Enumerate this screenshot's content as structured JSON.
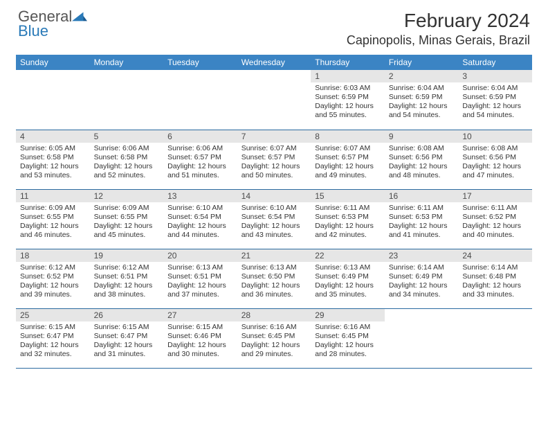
{
  "logo": {
    "general": "General",
    "blue": "Blue"
  },
  "title": "February 2024",
  "location": "Capinopolis, Minas Gerais, Brazil",
  "colors": {
    "header_bg": "#3b84c4",
    "header_text": "#ffffff",
    "daynum_bg": "#e6e6e6",
    "row_border": "#2a6aa0",
    "logo_blue": "#2a7ab8",
    "body_text": "#333333"
  },
  "weekdays": [
    "Sunday",
    "Monday",
    "Tuesday",
    "Wednesday",
    "Thursday",
    "Friday",
    "Saturday"
  ],
  "weeks": [
    [
      {
        "empty": true
      },
      {
        "empty": true
      },
      {
        "empty": true
      },
      {
        "empty": true
      },
      {
        "day": "1",
        "sunrise": "Sunrise: 6:03 AM",
        "sunset": "Sunset: 6:59 PM",
        "daylight": "Daylight: 12 hours and 55 minutes."
      },
      {
        "day": "2",
        "sunrise": "Sunrise: 6:04 AM",
        "sunset": "Sunset: 6:59 PM",
        "daylight": "Daylight: 12 hours and 54 minutes."
      },
      {
        "day": "3",
        "sunrise": "Sunrise: 6:04 AM",
        "sunset": "Sunset: 6:59 PM",
        "daylight": "Daylight: 12 hours and 54 minutes."
      }
    ],
    [
      {
        "day": "4",
        "sunrise": "Sunrise: 6:05 AM",
        "sunset": "Sunset: 6:58 PM",
        "daylight": "Daylight: 12 hours and 53 minutes."
      },
      {
        "day": "5",
        "sunrise": "Sunrise: 6:06 AM",
        "sunset": "Sunset: 6:58 PM",
        "daylight": "Daylight: 12 hours and 52 minutes."
      },
      {
        "day": "6",
        "sunrise": "Sunrise: 6:06 AM",
        "sunset": "Sunset: 6:57 PM",
        "daylight": "Daylight: 12 hours and 51 minutes."
      },
      {
        "day": "7",
        "sunrise": "Sunrise: 6:07 AM",
        "sunset": "Sunset: 6:57 PM",
        "daylight": "Daylight: 12 hours and 50 minutes."
      },
      {
        "day": "8",
        "sunrise": "Sunrise: 6:07 AM",
        "sunset": "Sunset: 6:57 PM",
        "daylight": "Daylight: 12 hours and 49 minutes."
      },
      {
        "day": "9",
        "sunrise": "Sunrise: 6:08 AM",
        "sunset": "Sunset: 6:56 PM",
        "daylight": "Daylight: 12 hours and 48 minutes."
      },
      {
        "day": "10",
        "sunrise": "Sunrise: 6:08 AM",
        "sunset": "Sunset: 6:56 PM",
        "daylight": "Daylight: 12 hours and 47 minutes."
      }
    ],
    [
      {
        "day": "11",
        "sunrise": "Sunrise: 6:09 AM",
        "sunset": "Sunset: 6:55 PM",
        "daylight": "Daylight: 12 hours and 46 minutes."
      },
      {
        "day": "12",
        "sunrise": "Sunrise: 6:09 AM",
        "sunset": "Sunset: 6:55 PM",
        "daylight": "Daylight: 12 hours and 45 minutes."
      },
      {
        "day": "13",
        "sunrise": "Sunrise: 6:10 AM",
        "sunset": "Sunset: 6:54 PM",
        "daylight": "Daylight: 12 hours and 44 minutes."
      },
      {
        "day": "14",
        "sunrise": "Sunrise: 6:10 AM",
        "sunset": "Sunset: 6:54 PM",
        "daylight": "Daylight: 12 hours and 43 minutes."
      },
      {
        "day": "15",
        "sunrise": "Sunrise: 6:11 AM",
        "sunset": "Sunset: 6:53 PM",
        "daylight": "Daylight: 12 hours and 42 minutes."
      },
      {
        "day": "16",
        "sunrise": "Sunrise: 6:11 AM",
        "sunset": "Sunset: 6:53 PM",
        "daylight": "Daylight: 12 hours and 41 minutes."
      },
      {
        "day": "17",
        "sunrise": "Sunrise: 6:11 AM",
        "sunset": "Sunset: 6:52 PM",
        "daylight": "Daylight: 12 hours and 40 minutes."
      }
    ],
    [
      {
        "day": "18",
        "sunrise": "Sunrise: 6:12 AM",
        "sunset": "Sunset: 6:52 PM",
        "daylight": "Daylight: 12 hours and 39 minutes."
      },
      {
        "day": "19",
        "sunrise": "Sunrise: 6:12 AM",
        "sunset": "Sunset: 6:51 PM",
        "daylight": "Daylight: 12 hours and 38 minutes."
      },
      {
        "day": "20",
        "sunrise": "Sunrise: 6:13 AM",
        "sunset": "Sunset: 6:51 PM",
        "daylight": "Daylight: 12 hours and 37 minutes."
      },
      {
        "day": "21",
        "sunrise": "Sunrise: 6:13 AM",
        "sunset": "Sunset: 6:50 PM",
        "daylight": "Daylight: 12 hours and 36 minutes."
      },
      {
        "day": "22",
        "sunrise": "Sunrise: 6:13 AM",
        "sunset": "Sunset: 6:49 PM",
        "daylight": "Daylight: 12 hours and 35 minutes."
      },
      {
        "day": "23",
        "sunrise": "Sunrise: 6:14 AM",
        "sunset": "Sunset: 6:49 PM",
        "daylight": "Daylight: 12 hours and 34 minutes."
      },
      {
        "day": "24",
        "sunrise": "Sunrise: 6:14 AM",
        "sunset": "Sunset: 6:48 PM",
        "daylight": "Daylight: 12 hours and 33 minutes."
      }
    ],
    [
      {
        "day": "25",
        "sunrise": "Sunrise: 6:15 AM",
        "sunset": "Sunset: 6:47 PM",
        "daylight": "Daylight: 12 hours and 32 minutes."
      },
      {
        "day": "26",
        "sunrise": "Sunrise: 6:15 AM",
        "sunset": "Sunset: 6:47 PM",
        "daylight": "Daylight: 12 hours and 31 minutes."
      },
      {
        "day": "27",
        "sunrise": "Sunrise: 6:15 AM",
        "sunset": "Sunset: 6:46 PM",
        "daylight": "Daylight: 12 hours and 30 minutes."
      },
      {
        "day": "28",
        "sunrise": "Sunrise: 6:16 AM",
        "sunset": "Sunset: 6:45 PM",
        "daylight": "Daylight: 12 hours and 29 minutes."
      },
      {
        "day": "29",
        "sunrise": "Sunrise: 6:16 AM",
        "sunset": "Sunset: 6:45 PM",
        "daylight": "Daylight: 12 hours and 28 minutes."
      },
      {
        "empty": true
      },
      {
        "empty": true
      }
    ]
  ]
}
